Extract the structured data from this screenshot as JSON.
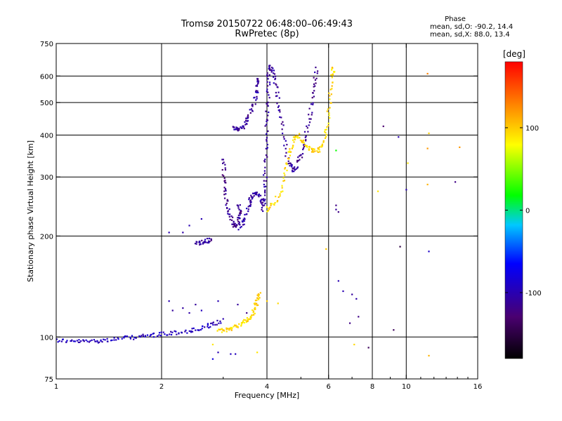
{
  "header": {
    "title_line1": "Tromsø 20150722 06:48:00–06:49:43",
    "title_line2": "RwPretec (8p)"
  },
  "phase_box": {
    "title": "Phase",
    "line_o": "mean, sd,O: -90.2, 14.4",
    "line_x": "mean, sd,X:  88.0, 13.4"
  },
  "colorbar": {
    "label": "[deg]",
    "ticks": [
      {
        "value": 100,
        "label": "100"
      },
      {
        "value": 0,
        "label": "0"
      },
      {
        "value": -100,
        "label": "-100"
      }
    ],
    "range": [
      -180,
      180
    ]
  },
  "chart_data": {
    "type": "scatter",
    "xlabel": "Frequency [MHz]",
    "ylabel": "Stationary phase Virtual Height [km]",
    "xscale": "log",
    "yscale": "log",
    "xlim": [
      1,
      16
    ],
    "ylim": [
      75,
      750
    ],
    "x_ticks": [
      1,
      2,
      4,
      6,
      8,
      10,
      16
    ],
    "y_ticks": [
      75,
      100,
      200,
      300,
      400,
      500,
      600,
      750
    ],
    "x_grid": [
      2,
      4,
      6,
      8,
      10
    ],
    "y_grid": [
      100,
      200,
      300,
      400,
      500,
      600
    ],
    "traces": [
      {
        "points": [
          [
            1.0,
            98
          ],
          [
            1.1,
            97
          ],
          [
            1.2,
            97
          ],
          [
            1.3,
            97.5
          ],
          [
            1.4,
            98
          ],
          [
            1.55,
            99
          ],
          [
            1.7,
            100
          ],
          [
            1.85,
            101
          ],
          [
            2.0,
            102
          ],
          [
            2.2,
            103
          ],
          [
            2.4,
            104
          ],
          [
            2.6,
            106
          ],
          [
            2.8,
            109
          ],
          [
            3.0,
            112
          ]
        ],
        "phase": -95
      },
      {
        "points": [
          [
            2.9,
            104
          ],
          [
            3.05,
            105
          ],
          [
            3.2,
            107
          ],
          [
            3.35,
            109
          ],
          [
            3.5,
            112
          ],
          [
            3.6,
            115
          ],
          [
            3.7,
            122
          ],
          [
            3.75,
            130
          ],
          [
            3.8,
            135
          ]
        ],
        "phase": 95
      },
      {
        "points": [
          [
            2.5,
            190
          ],
          [
            2.6,
            191
          ],
          [
            2.7,
            193
          ],
          [
            2.8,
            196
          ]
        ],
        "phase": -110
      },
      {
        "points": [
          [
            3.0,
            340
          ],
          [
            3.02,
            300
          ],
          [
            3.05,
            265
          ],
          [
            3.1,
            240
          ],
          [
            3.18,
            222
          ],
          [
            3.25,
            213
          ],
          [
            3.3,
            220
          ],
          [
            3.35,
            235
          ],
          [
            3.3,
            250
          ]
        ],
        "phase": -115
      },
      {
        "points": [
          [
            3.35,
            210
          ],
          [
            3.45,
            225
          ],
          [
            3.55,
            245
          ],
          [
            3.6,
            260
          ],
          [
            3.7,
            270
          ],
          [
            3.8,
            265
          ],
          [
            3.9,
            250
          ]
        ],
        "phase": -105
      },
      {
        "points": [
          [
            3.2,
            420
          ],
          [
            3.3,
            415
          ],
          [
            3.4,
            420
          ],
          [
            3.5,
            440
          ],
          [
            3.6,
            470
          ],
          [
            3.7,
            510
          ],
          [
            3.75,
            560
          ],
          [
            3.8,
            600
          ]
        ],
        "phase": -110
      },
      {
        "points": [
          [
            3.9,
            240
          ],
          [
            3.92,
            260
          ],
          [
            3.95,
            300
          ],
          [
            3.98,
            360
          ],
          [
            4.0,
            420
          ],
          [
            4.02,
            500
          ],
          [
            4.04,
            580
          ],
          [
            4.05,
            640
          ]
        ],
        "phase": -110
      },
      {
        "points": [
          [
            4.05,
            640
          ],
          [
            4.15,
            620
          ],
          [
            4.25,
            560
          ],
          [
            4.35,
            480
          ],
          [
            4.45,
            400
          ],
          [
            4.6,
            330
          ],
          [
            4.75,
            315
          ],
          [
            4.9,
            320
          ]
        ],
        "phase": -110
      },
      {
        "points": [
          [
            4.9,
            330
          ],
          [
            5.05,
            360
          ],
          [
            5.2,
            410
          ],
          [
            5.35,
            480
          ],
          [
            5.45,
            560
          ],
          [
            5.55,
            640
          ]
        ],
        "phase": -115
      },
      {
        "points": [
          [
            4.0,
            240
          ],
          [
            4.2,
            250
          ],
          [
            4.4,
            275
          ],
          [
            4.55,
            320
          ],
          [
            4.65,
            360
          ],
          [
            4.8,
            390
          ],
          [
            4.95,
            400
          ]
        ],
        "phase": 95
      },
      {
        "points": [
          [
            5.0,
            390
          ],
          [
            5.2,
            370
          ],
          [
            5.4,
            360
          ],
          [
            5.6,
            360
          ],
          [
            5.8,
            380
          ],
          [
            5.95,
            430
          ],
          [
            6.05,
            510
          ],
          [
            6.15,
            600
          ],
          [
            6.2,
            650
          ]
        ],
        "phase": 95
      }
    ],
    "scattered_points": [
      [
        2.1,
        205,
        -100
      ],
      [
        2.3,
        205,
        -105
      ],
      [
        2.4,
        215,
        -100
      ],
      [
        2.6,
        225,
        -100
      ],
      [
        2.1,
        128,
        -100
      ],
      [
        2.15,
        120,
        -110
      ],
      [
        2.3,
        122,
        -108
      ],
      [
        2.5,
        125,
        -110
      ],
      [
        2.4,
        118,
        -105
      ],
      [
        2.6,
        120,
        -95
      ],
      [
        2.9,
        128,
        -100
      ],
      [
        3.3,
        125,
        -110
      ],
      [
        3.5,
        118,
        -120
      ],
      [
        3.7,
        122,
        95
      ],
      [
        4.0,
        128,
        100
      ],
      [
        4.3,
        126,
        95
      ],
      [
        2.9,
        90,
        -100
      ],
      [
        2.8,
        86,
        -80
      ],
      [
        3.15,
        89,
        -95
      ],
      [
        3.25,
        89,
        -95
      ],
      [
        3.75,
        90,
        90
      ],
      [
        2.8,
        95,
        90
      ],
      [
        5.9,
        183,
        100
      ],
      [
        6.3,
        247,
        -120
      ],
      [
        6.3,
        240,
        -110
      ],
      [
        6.4,
        236,
        -120
      ],
      [
        6.4,
        147,
        -100
      ],
      [
        6.6,
        137,
        -100
      ],
      [
        7.0,
        134,
        -110
      ],
      [
        7.2,
        130,
        -105
      ],
      [
        7.3,
        115,
        -120
      ],
      [
        6.9,
        110,
        -120
      ],
      [
        7.1,
        95,
        95
      ],
      [
        7.8,
        93,
        -140
      ],
      [
        8.3,
        272,
        90
      ],
      [
        8.6,
        425,
        -130
      ],
      [
        9.5,
        395,
        -100
      ],
      [
        9.6,
        186,
        -150
      ],
      [
        10.0,
        275,
        -100
      ],
      [
        10.1,
        330,
        90
      ],
      [
        9.2,
        105,
        -140
      ],
      [
        11.5,
        610,
        130
      ],
      [
        11.6,
        405,
        100
      ],
      [
        11.5,
        365,
        120
      ],
      [
        11.5,
        285,
        110
      ],
      [
        11.6,
        180,
        -90
      ],
      [
        11.6,
        88,
        110
      ],
      [
        14.2,
        368,
        120
      ],
      [
        13.8,
        290,
        -120
      ],
      [
        6.3,
        360,
        20
      ]
    ]
  }
}
